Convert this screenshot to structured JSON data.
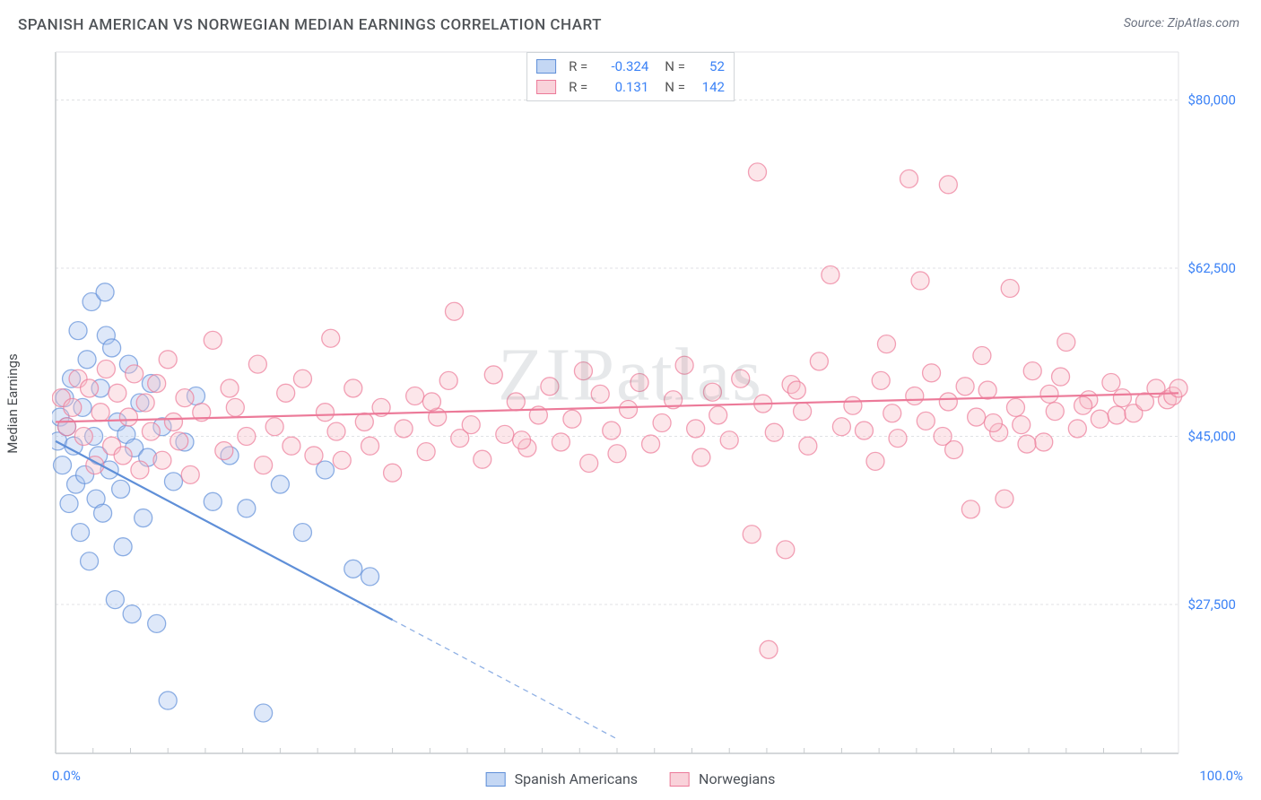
{
  "title": "SPANISH AMERICAN VS NORWEGIAN MEDIAN EARNINGS CORRELATION CHART",
  "source": "Source: ZipAtlas.com",
  "watermark": "ZIPatlas",
  "ylabel": "Median Earnings",
  "chart": {
    "type": "scatter-with-regression",
    "background_color": "#ffffff",
    "grid_color": "#e0e2e4",
    "axis_color": "#c7cbce",
    "xlim": [
      0,
      100
    ],
    "ylim": [
      12000,
      85000
    ],
    "yticks": [
      27500,
      45000,
      62500,
      80000
    ],
    "ytick_labels": [
      "$27,500",
      "$45,000",
      "$62,500",
      "$80,000"
    ],
    "xtick_labels": {
      "min": "0.0%",
      "max": "100.0%"
    },
    "marker_radius": 10,
    "marker_opacity": 0.38,
    "line_width": 2.2,
    "series": [
      {
        "key": "spanish",
        "label": "Spanish Americans",
        "color_fill": "#a7c3ef",
        "color_stroke": "#5f8fd8",
        "R": "-0.324",
        "N": "52",
        "regression": {
          "x0": 0,
          "y0": 44500,
          "x1": 50,
          "y1": 13500,
          "solid_until_x": 30
        },
        "points": [
          [
            0.2,
            44500
          ],
          [
            0.4,
            47000
          ],
          [
            0.6,
            42000
          ],
          [
            0.8,
            49000
          ],
          [
            1.0,
            46000
          ],
          [
            1.2,
            38000
          ],
          [
            1.4,
            51000
          ],
          [
            1.6,
            44000
          ],
          [
            1.8,
            40000
          ],
          [
            2.0,
            56000
          ],
          [
            2.2,
            35000
          ],
          [
            2.4,
            48000
          ],
          [
            2.6,
            41000
          ],
          [
            2.8,
            53000
          ],
          [
            3.0,
            32000
          ],
          [
            3.2,
            59000
          ],
          [
            3.4,
            45000
          ],
          [
            3.6,
            38500
          ],
          [
            3.8,
            43000
          ],
          [
            4.0,
            50000
          ],
          [
            4.2,
            37000
          ],
          [
            4.4,
            60000
          ],
          [
            4.5,
            55500
          ],
          [
            4.8,
            41500
          ],
          [
            5.0,
            54200
          ],
          [
            5.3,
            28000
          ],
          [
            5.5,
            46500
          ],
          [
            5.8,
            39500
          ],
          [
            6.0,
            33500
          ],
          [
            6.3,
            45200
          ],
          [
            6.5,
            52500
          ],
          [
            6.8,
            26500
          ],
          [
            7.0,
            43800
          ],
          [
            7.5,
            48500
          ],
          [
            7.8,
            36500
          ],
          [
            8.2,
            42800
          ],
          [
            8.5,
            50500
          ],
          [
            9.0,
            25500
          ],
          [
            9.5,
            46000
          ],
          [
            10.0,
            17500
          ],
          [
            10.5,
            40300
          ],
          [
            11.5,
            44400
          ],
          [
            12.5,
            49200
          ],
          [
            14.0,
            38200
          ],
          [
            15.5,
            43000
          ],
          [
            17.0,
            37500
          ],
          [
            18.5,
            16200
          ],
          [
            20.0,
            40000
          ],
          [
            22.0,
            35000
          ],
          [
            24.0,
            41500
          ],
          [
            26.5,
            31200
          ],
          [
            28.0,
            30400
          ]
        ]
      },
      {
        "key": "norwegian",
        "label": "Norwegians",
        "color_fill": "#f6bcc8",
        "color_stroke": "#ec7a99",
        "R": "0.131",
        "N": "142",
        "regression": {
          "x0": 0,
          "y0": 46500,
          "x1": 100,
          "y1": 49500,
          "solid_until_x": 100
        },
        "points": [
          [
            0.5,
            49000
          ],
          [
            1.0,
            46000
          ],
          [
            1.5,
            48000
          ],
          [
            2.0,
            51000
          ],
          [
            2.5,
            45000
          ],
          [
            3.0,
            50000
          ],
          [
            3.5,
            42000
          ],
          [
            4.0,
            47500
          ],
          [
            4.5,
            52000
          ],
          [
            5.0,
            44000
          ],
          [
            5.5,
            49500
          ],
          [
            6.0,
            43000
          ],
          [
            6.5,
            47000
          ],
          [
            7.0,
            51500
          ],
          [
            7.5,
            41500
          ],
          [
            8.0,
            48500
          ],
          [
            8.5,
            45500
          ],
          [
            9.0,
            50500
          ],
          [
            9.5,
            42500
          ],
          [
            10.0,
            53000
          ],
          [
            10.5,
            46500
          ],
          [
            11.0,
            44500
          ],
          [
            11.5,
            49000
          ],
          [
            12.0,
            41000
          ],
          [
            13.0,
            47500
          ],
          [
            14.0,
            55000
          ],
          [
            15.0,
            43500
          ],
          [
            15.5,
            50000
          ],
          [
            16.0,
            48000
          ],
          [
            17.0,
            45000
          ],
          [
            18.0,
            52500
          ],
          [
            18.5,
            42000
          ],
          [
            19.5,
            46000
          ],
          [
            20.5,
            49500
          ],
          [
            21.0,
            44000
          ],
          [
            22.0,
            51000
          ],
          [
            23.0,
            43000
          ],
          [
            24.0,
            47500
          ],
          [
            25.0,
            45500
          ],
          [
            25.5,
            42500
          ],
          [
            26.5,
            50000
          ],
          [
            27.5,
            46500
          ],
          [
            28.0,
            44000
          ],
          [
            29.0,
            48000
          ],
          [
            30.0,
            41200
          ],
          [
            31.0,
            45800
          ],
          [
            32.0,
            49200
          ],
          [
            33.0,
            43400
          ],
          [
            34.0,
            47000
          ],
          [
            35.0,
            50800
          ],
          [
            35.5,
            58000
          ],
          [
            36.0,
            44800
          ],
          [
            37.0,
            46200
          ],
          [
            38.0,
            42600
          ],
          [
            39.0,
            51400
          ],
          [
            40.0,
            45200
          ],
          [
            41.0,
            48600
          ],
          [
            42.0,
            43800
          ],
          [
            43.0,
            47200
          ],
          [
            44.0,
            50200
          ],
          [
            45.0,
            44400
          ],
          [
            46.0,
            46800
          ],
          [
            47.0,
            51800
          ],
          [
            47.5,
            42200
          ],
          [
            48.5,
            49400
          ],
          [
            49.5,
            45600
          ],
          [
            50.0,
            43200
          ],
          [
            51.0,
            47800
          ],
          [
            52.0,
            50600
          ],
          [
            53.0,
            44200
          ],
          [
            54.0,
            46400
          ],
          [
            55.0,
            48800
          ],
          [
            56.0,
            52400
          ],
          [
            57.0,
            45800
          ],
          [
            57.5,
            42800
          ],
          [
            58.5,
            49600
          ],
          [
            59.0,
            47200
          ],
          [
            60.0,
            44600
          ],
          [
            61.0,
            51000
          ],
          [
            62.0,
            34800
          ],
          [
            62.5,
            72500
          ],
          [
            63.0,
            48400
          ],
          [
            64.0,
            45400
          ],
          [
            65.0,
            33200
          ],
          [
            65.5,
            50400
          ],
          [
            66.0,
            49800
          ],
          [
            66.5,
            47600
          ],
          [
            67.0,
            44000
          ],
          [
            68.0,
            52800
          ],
          [
            69.0,
            61800
          ],
          [
            70.0,
            46000
          ],
          [
            71.0,
            48200
          ],
          [
            72.0,
            45600
          ],
          [
            73.0,
            42400
          ],
          [
            73.5,
            50800
          ],
          [
            74.0,
            54600
          ],
          [
            74.5,
            47400
          ],
          [
            75.0,
            44800
          ],
          [
            76.0,
            71800
          ],
          [
            76.5,
            49200
          ],
          [
            77.0,
            61200
          ],
          [
            77.5,
            46600
          ],
          [
            78.0,
            51600
          ],
          [
            79.0,
            45000
          ],
          [
            79.5,
            48600
          ],
          [
            80.0,
            43600
          ],
          [
            81.0,
            50200
          ],
          [
            82.0,
            47000
          ],
          [
            82.5,
            53400
          ],
          [
            83.0,
            49800
          ],
          [
            84.0,
            45400
          ],
          [
            84.5,
            38500
          ],
          [
            85.0,
            60400
          ],
          [
            85.5,
            48000
          ],
          [
            86.0,
            46200
          ],
          [
            87.0,
            51800
          ],
          [
            88.0,
            44400
          ],
          [
            88.5,
            49400
          ],
          [
            89.0,
            47600
          ],
          [
            90.0,
            54800
          ],
          [
            91.0,
            45800
          ],
          [
            92.0,
            48800
          ],
          [
            93.0,
            46800
          ],
          [
            94.0,
            50600
          ],
          [
            94.5,
            47200
          ],
          [
            95.0,
            49000
          ],
          [
            96.0,
            47400
          ],
          [
            97.0,
            48600
          ],
          [
            98.0,
            50000
          ],
          [
            99.0,
            48800
          ],
          [
            99.5,
            49200
          ],
          [
            100.0,
            50000
          ],
          [
            63.5,
            22800
          ],
          [
            79.5,
            71200
          ],
          [
            81.5,
            37400
          ],
          [
            83.5,
            46400
          ],
          [
            86.5,
            44200
          ],
          [
            89.5,
            51200
          ],
          [
            91.5,
            48200
          ],
          [
            24.5,
            55200
          ],
          [
            33.5,
            48600
          ],
          [
            41.5,
            44600
          ]
        ]
      }
    ]
  }
}
